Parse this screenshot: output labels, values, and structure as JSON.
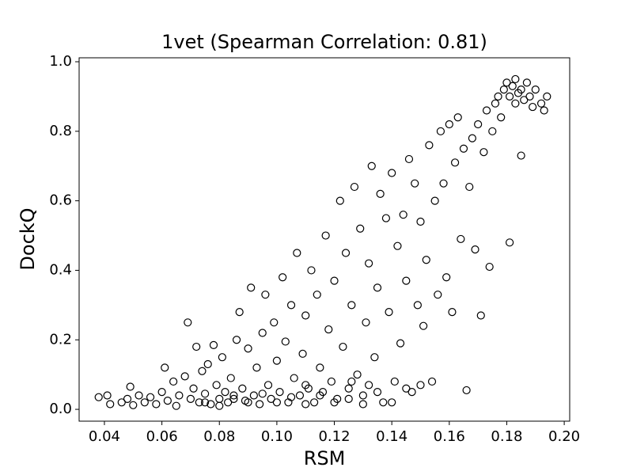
{
  "chart_data": {
    "type": "scatter",
    "title": "1vet (Spearman Correlation: 0.81)",
    "x_label": "RSM",
    "y_label": "DockQ",
    "color": "#000000",
    "x": [
      0.038,
      0.041,
      0.042,
      0.046,
      0.048,
      0.049,
      0.05,
      0.052,
      0.054,
      0.056,
      0.058,
      0.06,
      0.061,
      0.062,
      0.064,
      0.065,
      0.066,
      0.068,
      0.069,
      0.07,
      0.071,
      0.072,
      0.073,
      0.074,
      0.075,
      0.076,
      0.077,
      0.078,
      0.079,
      0.08,
      0.081,
      0.082,
      0.083,
      0.084,
      0.085,
      0.086,
      0.087,
      0.088,
      0.089,
      0.09,
      0.091,
      0.092,
      0.093,
      0.094,
      0.095,
      0.096,
      0.097,
      0.098,
      0.099,
      0.1,
      0.101,
      0.102,
      0.103,
      0.104,
      0.105,
      0.106,
      0.107,
      0.108,
      0.109,
      0.11,
      0.111,
      0.112,
      0.113,
      0.114,
      0.115,
      0.116,
      0.117,
      0.118,
      0.119,
      0.12,
      0.121,
      0.122,
      0.123,
      0.124,
      0.125,
      0.126,
      0.127,
      0.128,
      0.129,
      0.13,
      0.131,
      0.132,
      0.133,
      0.134,
      0.135,
      0.136,
      0.137,
      0.138,
      0.139,
      0.14,
      0.141,
      0.142,
      0.143,
      0.144,
      0.145,
      0.146,
      0.147,
      0.148,
      0.149,
      0.15,
      0.151,
      0.152,
      0.153,
      0.154,
      0.155,
      0.156,
      0.157,
      0.158,
      0.159,
      0.16,
      0.161,
      0.162,
      0.163,
      0.164,
      0.165,
      0.166,
      0.167,
      0.168,
      0.169,
      0.17,
      0.171,
      0.172,
      0.173,
      0.174,
      0.175,
      0.176,
      0.177,
      0.178,
      0.179,
      0.18,
      0.181,
      0.181,
      0.182,
      0.183,
      0.183,
      0.184,
      0.185,
      0.185,
      0.186,
      0.187,
      0.188,
      0.189,
      0.19,
      0.192,
      0.193,
      0.194,
      0.075,
      0.08,
      0.085,
      0.09,
      0.095,
      0.1,
      0.105,
      0.11,
      0.115,
      0.12,
      0.125,
      0.13,
      0.135,
      0.14,
      0.145,
      0.15,
      0.126,
      0.132,
      0.11
    ],
    "values": [
      0.035,
      0.04,
      0.015,
      0.02,
      0.03,
      0.065,
      0.012,
      0.04,
      0.02,
      0.035,
      0.015,
      0.05,
      0.12,
      0.025,
      0.08,
      0.01,
      0.04,
      0.095,
      0.25,
      0.03,
      0.06,
      0.18,
      0.02,
      0.11,
      0.045,
      0.13,
      0.015,
      0.185,
      0.07,
      0.03,
      0.15,
      0.05,
      0.02,
      0.09,
      0.04,
      0.2,
      0.28,
      0.06,
      0.025,
      0.175,
      0.35,
      0.04,
      0.12,
      0.015,
      0.22,
      0.33,
      0.07,
      0.03,
      0.25,
      0.14,
      0.05,
      0.38,
      0.195,
      0.02,
      0.3,
      0.09,
      0.45,
      0.04,
      0.16,
      0.27,
      0.06,
      0.4,
      0.02,
      0.33,
      0.12,
      0.05,
      0.5,
      0.23,
      0.08,
      0.37,
      0.03,
      0.6,
      0.18,
      0.45,
      0.06,
      0.3,
      0.64,
      0.1,
      0.52,
      0.04,
      0.25,
      0.42,
      0.7,
      0.15,
      0.35,
      0.62,
      0.02,
      0.55,
      0.28,
      0.68,
      0.08,
      0.47,
      0.19,
      0.56,
      0.37,
      0.72,
      0.05,
      0.65,
      0.3,
      0.54,
      0.24,
      0.43,
      0.76,
      0.08,
      0.6,
      0.33,
      0.8,
      0.65,
      0.38,
      0.82,
      0.28,
      0.71,
      0.84,
      0.49,
      0.75,
      0.055,
      0.64,
      0.78,
      0.46,
      0.82,
      0.27,
      0.74,
      0.86,
      0.41,
      0.8,
      0.88,
      0.9,
      0.84,
      0.92,
      0.94,
      0.48,
      0.9,
      0.93,
      0.95,
      0.88,
      0.91,
      0.92,
      0.73,
      0.89,
      0.94,
      0.9,
      0.87,
      0.92,
      0.88,
      0.86,
      0.9,
      0.02,
      0.01,
      0.03,
      0.02,
      0.045,
      0.02,
      0.035,
      0.015,
      0.04,
      0.02,
      0.03,
      0.015,
      0.05,
      0.02,
      0.06,
      0.07,
      0.08,
      0.07,
      0.07
    ],
    "xlim": [
      0.0312,
      0.2019
    ],
    "ylim": [
      -0.034,
      1.0114
    ],
    "xticks": [
      0.04,
      0.06,
      0.08,
      {
        "value": 0.1,
        "label": "0.10"
      },
      0.12,
      0.14,
      0.16,
      0.18,
      {
        "value": 0.2,
        "label": "0.20"
      }
    ],
    "yticks": [
      {
        "value": 0,
        "label": "0.0"
      },
      0.2,
      0.4,
      0.6,
      0.8,
      {
        "value": 1,
        "label": "1.0"
      }
    ]
  }
}
